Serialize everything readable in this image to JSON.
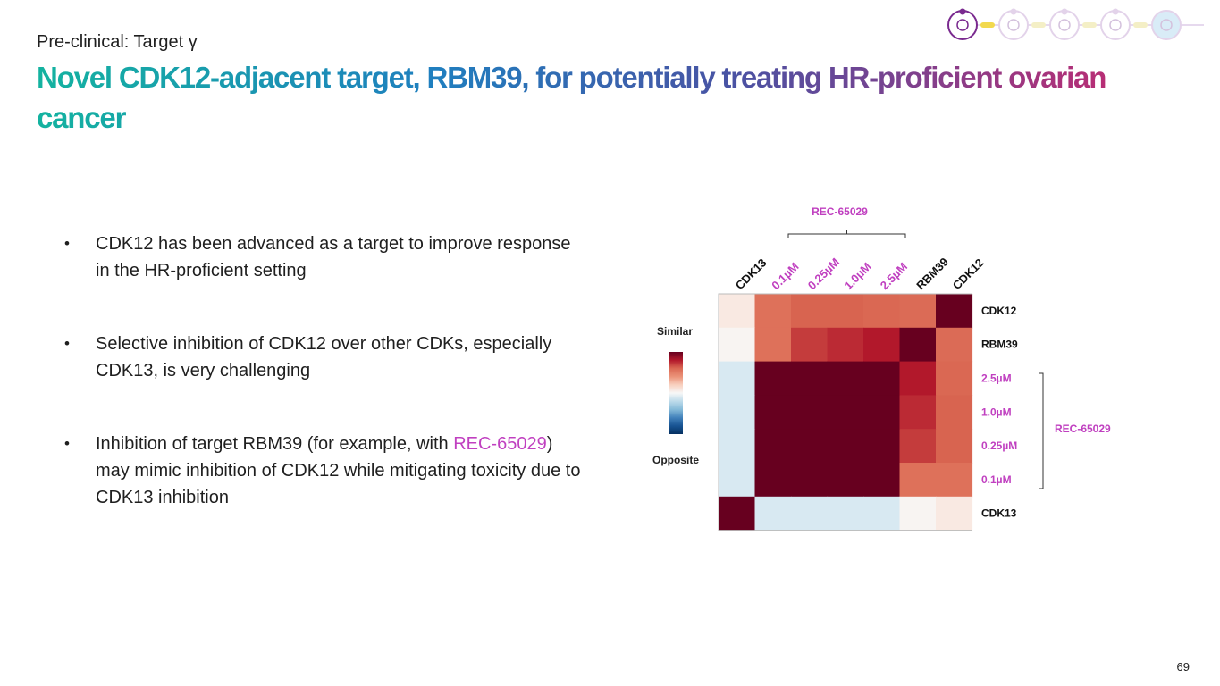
{
  "header": {
    "subtitle": "Pre-clinical: Target γ",
    "title": "Novel CDK12-adjacent target, RBM39, for potentially treating HR-proficient ovarian cancer"
  },
  "bullets": [
    {
      "parts": [
        {
          "text": "CDK12 has been advanced as a target to improve response in the HR-proficient setting",
          "highlight": false
        }
      ]
    },
    {
      "parts": [
        {
          "text": "Selective inhibition of CDK12 over other CDKs, especially CDK13, is very challenging",
          "highlight": false
        }
      ]
    },
    {
      "parts": [
        {
          "text": "Inhibition of target RBM39 (for example, with ",
          "highlight": false
        },
        {
          "text": "REC-65029",
          "highlight": true
        },
        {
          "text": ") may mimic inhibition of CDK12 while mitigating toxicity due to CDK13 inhibition",
          "highlight": false
        }
      ]
    }
  ],
  "page_number": "69",
  "colors": {
    "highlight": "#c040c0",
    "heat_high": "#67001f",
    "heat_mid": "#f7f7f7",
    "heat_low": "#053061"
  },
  "progress_icons": [
    "molecule-icon",
    "flask-icon",
    "dna-icon",
    "network-icon",
    "cell-icon"
  ],
  "chart_data": {
    "type": "heatmap",
    "title": "",
    "group_label": "REC-65029",
    "columns": [
      {
        "label": "CDK13",
        "highlight": false
      },
      {
        "label": "0.1µM",
        "highlight": true
      },
      {
        "label": "0.25µM",
        "highlight": true
      },
      {
        "label": "1.0µM",
        "highlight": true
      },
      {
        "label": "2.5µM",
        "highlight": true
      },
      {
        "label": "RBM39",
        "highlight": false
      },
      {
        "label": "CDK12",
        "highlight": false
      }
    ],
    "rows": [
      {
        "label": "CDK12",
        "highlight": false
      },
      {
        "label": "RBM39",
        "highlight": false
      },
      {
        "label": "2.5µM",
        "highlight": true
      },
      {
        "label": "1.0µM",
        "highlight": true
      },
      {
        "label": "0.25µM",
        "highlight": true
      },
      {
        "label": "0.1µM",
        "highlight": true
      },
      {
        "label": "CDK13",
        "highlight": false
      }
    ],
    "values": [
      [
        0.08,
        0.55,
        0.62,
        0.62,
        0.6,
        0.58,
        1.0
      ],
      [
        0.02,
        0.55,
        0.72,
        0.76,
        0.8,
        1.0,
        0.58
      ],
      [
        -0.1,
        1.0,
        1.0,
        1.0,
        1.0,
        0.8,
        0.6
      ],
      [
        -0.1,
        1.0,
        1.0,
        1.0,
        1.0,
        0.76,
        0.62
      ],
      [
        -0.1,
        1.0,
        1.0,
        1.0,
        1.0,
        0.72,
        0.62
      ],
      [
        -0.1,
        1.0,
        1.0,
        1.0,
        1.0,
        0.55,
        0.55
      ],
      [
        1.0,
        -0.1,
        -0.1,
        -0.1,
        -0.1,
        0.02,
        0.08
      ]
    ],
    "vrange": [
      -1,
      1
    ],
    "colorbar": {
      "top_label": "Similar",
      "bottom_label": "Opposite"
    },
    "grid": false
  }
}
